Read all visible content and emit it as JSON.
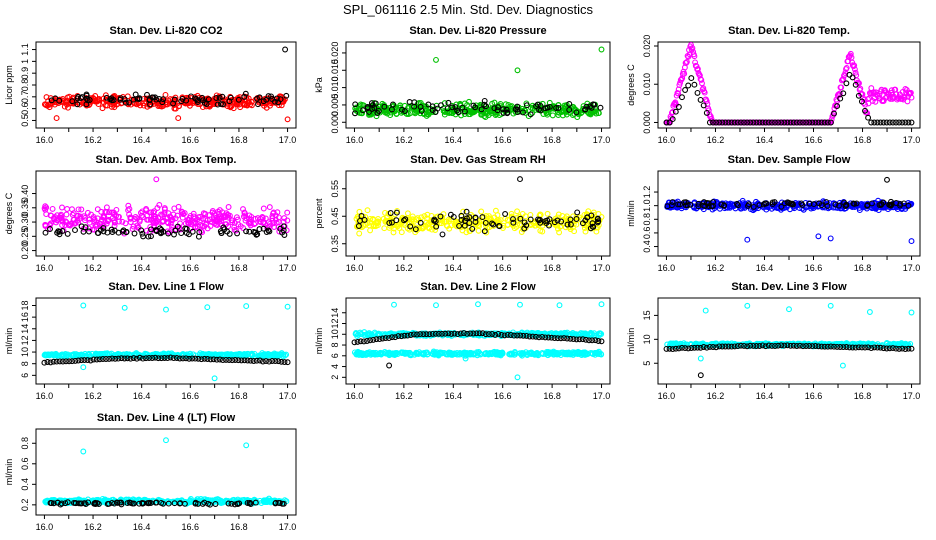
{
  "page": {
    "title": "SPL_061116  2.5 Min. Std. Dev. Diagnostics"
  },
  "colors": {
    "overlay": "#000000",
    "red": "#ff0000",
    "green": "#00c000",
    "magenta": "#ff00ff",
    "yellow": "#ffff00",
    "blue": "#0000ff",
    "cyan": "#00ffff",
    "frame": "#000000"
  },
  "chart_data": [
    {
      "type": "scatter",
      "title": "Stan. Dev. Li-820 CO2",
      "ylabel": "Licor ppm",
      "xlim": [
        15.99,
        17.01
      ],
      "ylim": [
        0.47,
        1.13
      ],
      "xticks": [
        "16.0",
        "16.2",
        "16.4",
        "16.6",
        "16.8",
        "17.0"
      ],
      "yticks": [
        "0.5",
        "0.6",
        "0.7",
        "0.8",
        "0.9",
        "1",
        "1.1"
      ],
      "series": [
        {
          "name": "primary",
          "color": "red",
          "pattern": "band",
          "mean": 0.66,
          "spread": 0.07,
          "outliers": [
            [
              16.05,
              0.52
            ],
            [
              16.55,
              0.52
            ],
            [
              17.0,
              0.51
            ]
          ]
        },
        {
          "name": "overlay",
          "color": "overlay",
          "pattern": "band",
          "mean": 0.68,
          "spread": 0.06,
          "outliers": [
            [
              16.99,
              1.1
            ]
          ]
        }
      ]
    },
    {
      "type": "scatter",
      "title": "Stan. Dev. Li-820 Pressure",
      "ylabel": "kPa",
      "xlim": [
        15.99,
        17.01
      ],
      "ylim": [
        -0.0005,
        0.022
      ],
      "xticks": [
        "16.0",
        "16.2",
        "16.4",
        "16.6",
        "16.8",
        "17.0"
      ],
      "yticks": [
        "0.000",
        "0.005",
        "0.010",
        "0.015",
        "0.020"
      ],
      "series": [
        {
          "name": "primary",
          "color": "green",
          "pattern": "band",
          "mean": 0.0035,
          "spread": 0.0028,
          "outliers": [
            [
              16.33,
              0.018
            ],
            [
              16.66,
              0.015
            ],
            [
              17.0,
              0.021
            ]
          ]
        },
        {
          "name": "overlay",
          "color": "overlay",
          "pattern": "band",
          "mean": 0.004,
          "spread": 0.0025,
          "outliers": []
        }
      ]
    },
    {
      "type": "scatter",
      "title": "Stan. Dev. Li-820 Temp.",
      "ylabel": "degrees C",
      "xlim": [
        15.99,
        17.01
      ],
      "ylim": [
        -0.0004,
        0.02
      ],
      "xticks": [
        "16.0",
        "16.2",
        "16.4",
        "16.6",
        "16.8",
        "17.0"
      ],
      "yticks": [
        "0.000",
        "0.010",
        "0.020"
      ],
      "series": [
        {
          "name": "primary",
          "color": "magenta",
          "pattern": "peaks",
          "peaks": [
            [
              16.1,
              0.02,
              0.055
            ],
            [
              16.75,
              0.018,
              0.05
            ]
          ],
          "baseline": 0.0,
          "tail": [
            [
              16.82,
              17.0,
              0.007
            ]
          ],
          "outliers": []
        },
        {
          "name": "overlay",
          "color": "overlay",
          "pattern": "peaks",
          "peaks": [
            [
              16.1,
              0.012,
              0.05
            ],
            [
              16.75,
              0.013,
              0.05
            ]
          ],
          "baseline": 0.0,
          "tail": [],
          "outliers": []
        }
      ]
    },
    {
      "type": "scatter",
      "title": "Stan. Dev. Amb. Box Temp.",
      "ylabel": "degrees C",
      "xlim": [
        15.99,
        17.01
      ],
      "ylim": [
        0.195,
        0.465
      ],
      "xticks": [
        "16.0",
        "16.2",
        "16.4",
        "16.6",
        "16.8",
        "17.0"
      ],
      "yticks": [
        "0.20",
        "0.25",
        "0.30",
        "0.35",
        "0.40"
      ],
      "series": [
        {
          "name": "primary",
          "color": "magenta",
          "pattern": "band",
          "mean": 0.31,
          "spread": 0.06,
          "outliers": [
            [
              16.46,
              0.45
            ]
          ]
        },
        {
          "name": "overlay",
          "color": "overlay",
          "pattern": "band",
          "mean": 0.265,
          "spread": 0.025,
          "outliers": []
        }
      ]
    },
    {
      "type": "scatter",
      "title": "Stan. Dev. Gas Stream RH",
      "ylabel": "percent",
      "xlim": [
        15.99,
        17.01
      ],
      "ylim": [
        0.32,
        0.6
      ],
      "xticks": [
        "16.0",
        "16.2",
        "16.4",
        "16.6",
        "16.8",
        "17.0"
      ],
      "yticks": [
        "0.35",
        "0.45",
        "0.55"
      ],
      "series": [
        {
          "name": "primary",
          "color": "yellow",
          "pattern": "band",
          "mean": 0.43,
          "spread": 0.05,
          "outliers": []
        },
        {
          "name": "overlay",
          "color": "overlay",
          "pattern": "band",
          "mean": 0.43,
          "spread": 0.05,
          "outliers": [
            [
              16.67,
              0.585
            ]
          ]
        }
      ]
    },
    {
      "type": "scatter",
      "title": "Stan. Dev. Sample Flow",
      "ylabel": "ml/min",
      "xlim": [
        15.99,
        17.01
      ],
      "ylim": [
        0.32,
        1.45
      ],
      "xticks": [
        "16.0",
        "16.2",
        "16.4",
        "16.6",
        "16.8",
        "17.0"
      ],
      "yticks": [
        "0.4",
        "0.6",
        "0.8",
        "1.0",
        "1.2"
      ],
      "series": [
        {
          "name": "primary",
          "color": "blue",
          "pattern": "band",
          "mean": 1.0,
          "spread": 0.08,
          "outliers": [
            [
              16.33,
              0.5
            ],
            [
              16.62,
              0.55
            ],
            [
              16.67,
              0.52
            ],
            [
              17.0,
              0.48
            ]
          ]
        },
        {
          "name": "overlay",
          "color": "overlay",
          "pattern": "band",
          "mean": 1.02,
          "spread": 0.06,
          "outliers": [
            [
              16.9,
              1.38
            ]
          ]
        }
      ]
    },
    {
      "type": "scatter",
      "title": "Stan. Dev. Line 1 Flow",
      "ylabel": "ml/min",
      "xlim": [
        15.99,
        17.01
      ],
      "ylim": [
        5.2,
        18.6
      ],
      "xticks": [
        "16.0",
        "16.2",
        "16.4",
        "16.6",
        "16.8",
        "17.0"
      ],
      "yticks": [
        "6",
        "8",
        "10",
        "12",
        "14",
        "16",
        "18"
      ],
      "series": [
        {
          "name": "primary",
          "color": "cyan",
          "pattern": "band",
          "mean": 9.5,
          "spread": 0.4,
          "outliers": [
            [
              16.16,
              18.0
            ],
            [
              16.33,
              17.6
            ],
            [
              16.5,
              17.3
            ],
            [
              16.67,
              17.7
            ],
            [
              16.83,
              17.9
            ],
            [
              17.0,
              17.8
            ],
            [
              16.7,
              5.5
            ],
            [
              16.16,
              7.4
            ]
          ]
        },
        {
          "name": "overlay",
          "color": "overlay",
          "pattern": "trend",
          "points": [
            [
              16.0,
              8.2
            ],
            [
              16.3,
              8.9
            ],
            [
              16.5,
              9.0
            ],
            [
              16.8,
              8.6
            ],
            [
              17.0,
              8.3
            ]
          ],
          "outliers": []
        }
      ]
    },
    {
      "type": "scatter",
      "title": "Stan. Dev. Line 2 Flow",
      "ylabel": "ml/min",
      "xlim": [
        15.99,
        17.01
      ],
      "ylim": [
        1.5,
        16.0
      ],
      "xticks": [
        "16.0",
        "16.2",
        "16.4",
        "16.6",
        "16.8",
        "17.0"
      ],
      "yticks": [
        "2",
        "4",
        "6",
        "8",
        "10",
        "12",
        "14"
      ],
      "series": [
        {
          "name": "primary",
          "color": "cyan",
          "pattern": "twoband",
          "means": [
            10.0,
            6.4
          ],
          "spread": 0.45,
          "outliers": [
            [
              16.16,
              15.5
            ],
            [
              16.33,
              15.4
            ],
            [
              16.5,
              15.6
            ],
            [
              16.67,
              15.5
            ],
            [
              16.83,
              15.4
            ],
            [
              17.0,
              15.6
            ],
            [
              16.66,
              2.0
            ],
            [
              16.45,
              5.5
            ]
          ]
        },
        {
          "name": "overlay",
          "color": "overlay",
          "pattern": "trend",
          "points": [
            [
              16.0,
              8.5
            ],
            [
              16.25,
              10.0
            ],
            [
              16.5,
              10.2
            ],
            [
              16.75,
              9.5
            ],
            [
              17.0,
              8.8
            ]
          ],
          "outliers": [
            [
              16.14,
              4.2
            ]
          ]
        }
      ]
    },
    {
      "type": "scatter",
      "title": "Stan. Dev. Line 3 Flow",
      "ylabel": "ml/min",
      "xlim": [
        15.99,
        17.01
      ],
      "ylim": [
        1.5,
        17.8
      ],
      "xticks": [
        "16.0",
        "16.2",
        "16.4",
        "16.6",
        "16.8",
        "17.0"
      ],
      "yticks": [
        "5",
        "10",
        "15"
      ],
      "series": [
        {
          "name": "primary",
          "color": "cyan",
          "pattern": "band",
          "mean": 8.9,
          "spread": 0.45,
          "outliers": [
            [
              16.16,
              16.0
            ],
            [
              16.33,
              17.0
            ],
            [
              16.5,
              16.3
            ],
            [
              16.67,
              17.0
            ],
            [
              16.83,
              15.7
            ],
            [
              17.0,
              15.6
            ],
            [
              16.72,
              4.5
            ],
            [
              16.14,
              6.0
            ]
          ]
        },
        {
          "name": "overlay",
          "color": "overlay",
          "pattern": "trend",
          "points": [
            [
              16.0,
              8.0
            ],
            [
              16.3,
              8.6
            ],
            [
              16.5,
              8.7
            ],
            [
              16.8,
              8.3
            ],
            [
              17.0,
              8.0
            ]
          ],
          "outliers": [
            [
              16.14,
              2.5
            ]
          ]
        }
      ]
    },
    {
      "type": "scatter",
      "title": "Stan. Dev. Line 4 (LT) Flow",
      "ylabel": "ml/min",
      "xlim": [
        15.99,
        17.01
      ],
      "ylim": [
        0.14,
        0.9
      ],
      "xticks": [
        "16.0",
        "16.2",
        "16.4",
        "16.6",
        "16.8",
        "17.0"
      ],
      "yticks": [
        "0.2",
        "0.4",
        "0.6",
        "0.8"
      ],
      "series": [
        {
          "name": "primary",
          "color": "cyan",
          "pattern": "band",
          "mean": 0.235,
          "spread": 0.03,
          "outliers": [
            [
              16.16,
              0.72
            ],
            [
              16.5,
              0.83
            ],
            [
              16.83,
              0.78
            ]
          ]
        },
        {
          "name": "overlay",
          "color": "overlay",
          "pattern": "band",
          "mean": 0.215,
          "spread": 0.015,
          "outliers": []
        }
      ]
    }
  ]
}
